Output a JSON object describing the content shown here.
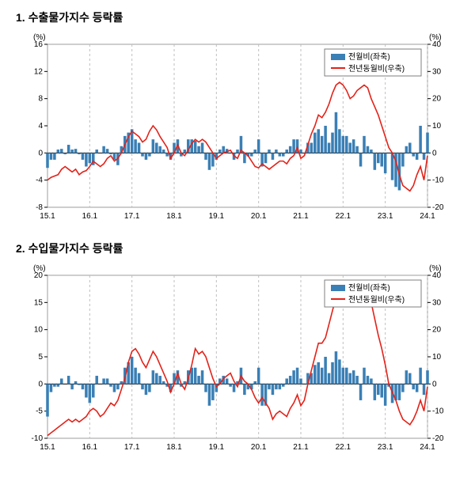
{
  "panels": [
    {
      "title": "1. 수출물가지수 등락률",
      "unit_left": "(%)",
      "unit_right": "(%)",
      "left_axis": {
        "min": -8,
        "max": 16,
        "step": 4
      },
      "right_axis": {
        "min": -20,
        "max": 40,
        "step": 10
      },
      "x_labels": [
        "15.1",
        "16.1",
        "17.1",
        "18.1",
        "19.1",
        "20.1",
        "21.1",
        "22.1",
        "23.1",
        "24.1"
      ],
      "x_grid_positions": [
        0,
        12,
        24,
        36,
        48,
        60,
        72,
        84,
        96,
        108
      ],
      "n_points": 109,
      "bar_color": "#3a7fb5",
      "line_color": "#e2231a",
      "grid_color": "#bfbfbf",
      "axis_color": "#000000",
      "border_color": "#9e9e9e",
      "background_color": "#ffffff",
      "legend": {
        "bar_label": "전월비(좌축)",
        "line_label": "전년동월비(우축)",
        "box_border": "#7f7f7f"
      },
      "bars": [
        -2.2,
        -1.0,
        -1.0,
        0.5,
        0.6,
        -0.2,
        1.2,
        0.5,
        0.6,
        -0.2,
        -1.0,
        -2.0,
        -1.5,
        -1.8,
        0.5,
        0.0,
        1.0,
        0.6,
        -0.2,
        -1.0,
        -1.8,
        1.0,
        2.5,
        3.0,
        3.5,
        2.0,
        1.5,
        -0.5,
        -1.0,
        -0.5,
        2.0,
        1.5,
        1.0,
        0.5,
        -0.5,
        -1.0,
        1.5,
        2.0,
        -0.5,
        0.5,
        2.0,
        2.0,
        1.8,
        1.0,
        1.5,
        -1.0,
        -2.5,
        -2.0,
        -1.0,
        0.5,
        1.0,
        0.6,
        0.0,
        -1.0,
        0.5,
        2.5,
        -1.5,
        -0.5,
        -0.5,
        0.5,
        2.0,
        -2.0,
        -1.5,
        0.5,
        -1.0,
        0.5,
        -0.5,
        -0.5,
        0.5,
        1.0,
        2.0,
        2.0,
        0.5,
        0.0,
        1.5,
        1.5,
        3.0,
        3.5,
        2.5,
        4.0,
        1.5,
        3.0,
        6.0,
        3.5,
        2.5,
        2.5,
        1.5,
        2.0,
        1.0,
        -2.0,
        2.5,
        1.0,
        0.5,
        -2.5,
        -1.5,
        -2.0,
        -3.0,
        0.0,
        -4.0,
        -5.0,
        -5.5,
        -2.0,
        1.0,
        1.5,
        -0.5,
        -1.0,
        4.0,
        -1.0,
        3.0
      ],
      "line": [
        -10.0,
        -9.0,
        -8.5,
        -8.0,
        -6.0,
        -5.0,
        -6.0,
        -7.0,
        -6.0,
        -8.0,
        -7.0,
        -6.5,
        -5.0,
        -3.0,
        -4.0,
        -5.0,
        -4.0,
        -2.0,
        -1.0,
        -3.0,
        -2.0,
        0.0,
        3.0,
        6.0,
        8.0,
        7.0,
        6.0,
        4.0,
        5.0,
        8.0,
        10.0,
        8.5,
        6.0,
        4.0,
        2.0,
        -2.0,
        0.0,
        3.0,
        0.0,
        -1.0,
        1.0,
        3.5,
        5.0,
        4.0,
        5.0,
        4.0,
        2.0,
        0.0,
        -2.0,
        -1.0,
        0.0,
        0.5,
        1.0,
        -1.0,
        -2.0,
        1.0,
        0.0,
        -1.0,
        -3.0,
        -5.0,
        -5.5,
        -4.0,
        -5.0,
        -6.0,
        -5.0,
        -4.0,
        -3.0,
        -3.0,
        -4.0,
        -2.0,
        -1.0,
        2.0,
        -2.0,
        -1.0,
        3.0,
        7.0,
        10.0,
        14.0,
        13.0,
        15.0,
        18.0,
        22.0,
        25.0,
        26.0,
        25.0,
        23.0,
        20.0,
        21.0,
        23.0,
        24.0,
        25.0,
        24.0,
        20.0,
        17.0,
        14.0,
        10.0,
        6.0,
        2.0,
        0.0,
        -3.0,
        -8.0,
        -12.0,
        -13.0,
        -14.0,
        -12.0,
        -8.0,
        -5.0,
        -10.0,
        -1.0
      ]
    },
    {
      "title": "2. 수입물가지수 등락률",
      "unit_left": "(%)",
      "unit_right": "(%)",
      "left_axis": {
        "min": -10,
        "max": 20,
        "step": 5
      },
      "right_axis": {
        "min": -20,
        "max": 40,
        "step": 10
      },
      "x_labels": [
        "15.1",
        "16.1",
        "17.1",
        "18.1",
        "19.1",
        "20.1",
        "21.1",
        "22.1",
        "23.1",
        "24.1"
      ],
      "x_grid_positions": [
        0,
        12,
        24,
        36,
        48,
        60,
        72,
        84,
        96,
        108
      ],
      "n_points": 109,
      "bar_color": "#3a7fb5",
      "line_color": "#e2231a",
      "grid_color": "#bfbfbf",
      "axis_color": "#000000",
      "border_color": "#9e9e9e",
      "background_color": "#ffffff",
      "legend": {
        "bar_label": "전월비(좌축)",
        "line_label": "전년동월비(우축)",
        "box_border": "#7f7f7f"
      },
      "bars": [
        -6.0,
        -1.5,
        -0.5,
        -0.5,
        1.0,
        0.0,
        1.5,
        -1.0,
        0.5,
        -0.2,
        -1.0,
        -2.5,
        -3.5,
        -2.5,
        1.5,
        0.0,
        1.0,
        1.0,
        -0.5,
        -1.5,
        -1.0,
        0.5,
        3.0,
        4.0,
        5.0,
        3.0,
        2.0,
        -1.0,
        -2.0,
        -1.5,
        2.5,
        2.0,
        1.5,
        0.5,
        -0.5,
        -1.5,
        2.0,
        2.5,
        -0.5,
        0.5,
        2.5,
        3.0,
        3.0,
        1.5,
        2.5,
        -1.5,
        -4.0,
        -3.0,
        -1.5,
        1.0,
        1.5,
        1.0,
        -0.5,
        -1.5,
        0.5,
        3.0,
        -2.0,
        -1.0,
        -1.0,
        0.5,
        3.0,
        -4.0,
        -4.0,
        -1.0,
        -2.0,
        -1.0,
        -1.0,
        -0.5,
        1.0,
        1.5,
        2.5,
        3.0,
        1.0,
        0.0,
        2.0,
        2.0,
        3.5,
        4.0,
        3.0,
        5.0,
        2.0,
        4.0,
        6.0,
        4.5,
        3.0,
        3.0,
        2.0,
        2.5,
        1.5,
        -3.0,
        3.0,
        1.5,
        1.0,
        -3.0,
        -2.0,
        -2.5,
        -4.0,
        -0.5,
        -3.5,
        -3.0,
        -3.0,
        -1.5,
        2.5,
        2.0,
        -1.0,
        -1.5,
        3.0,
        -2.0,
        2.5
      ],
      "line": [
        -19.0,
        -18.0,
        -17.0,
        -16.0,
        -15.0,
        -14.0,
        -13.0,
        -14.0,
        -13.0,
        -14.0,
        -13.0,
        -12.0,
        -10.0,
        -9.0,
        -10.0,
        -12.0,
        -11.0,
        -9.0,
        -7.0,
        -8.0,
        -6.0,
        -2.0,
        2.0,
        8.0,
        12.0,
        13.0,
        11.0,
        8.0,
        6.0,
        9.0,
        12.0,
        10.0,
        7.0,
        4.0,
        1.0,
        -3.0,
        0.0,
        4.0,
        0.0,
        -2.0,
        2.0,
        7.0,
        13.0,
        11.0,
        12.0,
        10.0,
        6.0,
        2.0,
        -1.0,
        0.0,
        2.0,
        3.0,
        4.0,
        1.0,
        -1.0,
        3.0,
        1.0,
        0.0,
        -2.0,
        -5.0,
        -7.0,
        -5.0,
        -7.0,
        -9.0,
        -13.0,
        -11.0,
        -10.0,
        -11.0,
        -12.0,
        -9.0,
        -7.0,
        -4.0,
        -8.0,
        -6.0,
        0.0,
        5.0,
        10.0,
        15.0,
        15.0,
        17.0,
        22.0,
        27.0,
        32.0,
        35.0,
        36.0,
        36.0,
        34.0,
        30.0,
        30.0,
        33.0,
        35.0,
        36.0,
        30.0,
        24.0,
        18.0,
        13.0,
        7.0,
        0.0,
        -3.0,
        -6.0,
        -10.0,
        -13.0,
        -14.0,
        -15.0,
        -13.0,
        -10.0,
        -6.0,
        -10.0,
        -1.0
      ]
    }
  ]
}
